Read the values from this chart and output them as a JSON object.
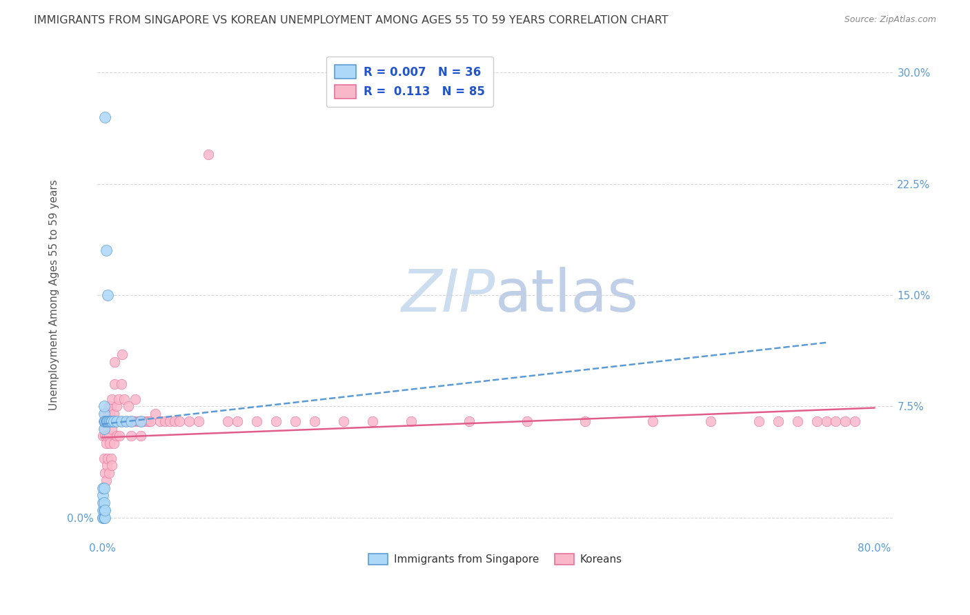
{
  "title": "IMMIGRANTS FROM SINGAPORE VS KOREAN UNEMPLOYMENT AMONG AGES 55 TO 59 YEARS CORRELATION CHART",
  "source": "Source: ZipAtlas.com",
  "ylabel": "Unemployment Among Ages 55 to 59 years",
  "ytick_values": [
    0.0,
    0.075,
    0.15,
    0.225,
    0.3
  ],
  "ytick_labels_left": [
    "0.0%",
    "",
    "",
    "",
    ""
  ],
  "ytick_labels_right": [
    "",
    "7.5%",
    "15.0%",
    "22.5%",
    "30.0%"
  ],
  "xtick_values": [
    0.0,
    0.8
  ],
  "xtick_labels": [
    "0.0%",
    "80.0%"
  ],
  "xlim": [
    -0.005,
    0.82
  ],
  "ylim": [
    -0.015,
    0.315
  ],
  "legend_line1": "R = 0.007   N = 36",
  "legend_line2": "R =  0.113   N = 85",
  "singapore_color": "#add8f7",
  "singapore_edge_color": "#5b9bd5",
  "korean_color": "#f9b8ca",
  "korean_edge_color": "#e8709a",
  "singapore_trend_color": "#5b9bd5",
  "korean_trend_color": "#e05c8a",
  "grid_color": "#d3d3d3",
  "watermark_color": "#ccddf0",
  "background_color": "#ffffff",
  "title_color": "#404040",
  "source_color": "#888888",
  "tick_color": "#5b9bd5",
  "ylabel_color": "#555555",
  "sg_trend_x0": 0.0,
  "sg_trend_x1": 0.75,
  "sg_trend_y0": 0.063,
  "sg_trend_y1": 0.118,
  "kr_trend_x0": 0.0,
  "kr_trend_x1": 0.8,
  "kr_trend_y0": 0.054,
  "kr_trend_y1": 0.074,
  "sg_points_x": [
    0.001,
    0.001,
    0.001,
    0.001,
    0.001,
    0.001,
    0.002,
    0.002,
    0.002,
    0.002,
    0.002,
    0.002,
    0.002,
    0.002,
    0.003,
    0.003,
    0.003,
    0.003,
    0.003,
    0.004,
    0.004,
    0.004,
    0.005,
    0.005,
    0.006,
    0.006,
    0.007,
    0.008,
    0.009,
    0.01,
    0.012,
    0.015,
    0.02,
    0.025,
    0.03,
    0.04
  ],
  "sg_points_y": [
    0.0,
    0.0,
    0.005,
    0.01,
    0.015,
    0.02,
    0.0,
    0.005,
    0.01,
    0.02,
    0.06,
    0.065,
    0.07,
    0.075,
    0.0,
    0.005,
    0.065,
    0.065,
    0.27,
    0.065,
    0.065,
    0.18,
    0.065,
    0.065,
    0.065,
    0.15,
    0.065,
    0.065,
    0.065,
    0.065,
    0.065,
    0.065,
    0.065,
    0.065,
    0.065,
    0.065
  ],
  "kr_points_x": [
    0.001,
    0.002,
    0.002,
    0.003,
    0.003,
    0.003,
    0.004,
    0.004,
    0.004,
    0.005,
    0.005,
    0.005,
    0.006,
    0.006,
    0.007,
    0.007,
    0.007,
    0.008,
    0.008,
    0.009,
    0.009,
    0.009,
    0.01,
    0.01,
    0.01,
    0.011,
    0.012,
    0.012,
    0.013,
    0.013,
    0.014,
    0.015,
    0.015,
    0.016,
    0.017,
    0.018,
    0.019,
    0.02,
    0.021,
    0.022,
    0.023,
    0.025,
    0.027,
    0.028,
    0.03,
    0.032,
    0.034,
    0.036,
    0.038,
    0.04,
    0.042,
    0.045,
    0.048,
    0.05,
    0.055,
    0.06,
    0.065,
    0.07,
    0.075,
    0.08,
    0.09,
    0.1,
    0.11,
    0.13,
    0.14,
    0.16,
    0.18,
    0.2,
    0.22,
    0.25,
    0.28,
    0.32,
    0.38,
    0.44,
    0.5,
    0.57,
    0.63,
    0.68,
    0.7,
    0.72,
    0.74,
    0.75,
    0.76,
    0.77,
    0.78
  ],
  "kr_points_y": [
    0.055,
    0.04,
    0.06,
    0.03,
    0.055,
    0.07,
    0.025,
    0.05,
    0.065,
    0.035,
    0.055,
    0.065,
    0.04,
    0.065,
    0.03,
    0.055,
    0.075,
    0.05,
    0.07,
    0.04,
    0.065,
    0.075,
    0.035,
    0.06,
    0.08,
    0.065,
    0.05,
    0.07,
    0.09,
    0.105,
    0.065,
    0.055,
    0.075,
    0.065,
    0.08,
    0.055,
    0.065,
    0.09,
    0.11,
    0.065,
    0.08,
    0.065,
    0.075,
    0.065,
    0.055,
    0.065,
    0.08,
    0.065,
    0.065,
    0.055,
    0.065,
    0.065,
    0.065,
    0.065,
    0.07,
    0.065,
    0.065,
    0.065,
    0.065,
    0.065,
    0.065,
    0.065,
    0.245,
    0.065,
    0.065,
    0.065,
    0.065,
    0.065,
    0.065,
    0.065,
    0.065,
    0.065,
    0.065,
    0.065,
    0.065,
    0.065,
    0.065,
    0.065,
    0.065,
    0.065,
    0.065,
    0.065,
    0.065,
    0.065,
    0.065
  ]
}
